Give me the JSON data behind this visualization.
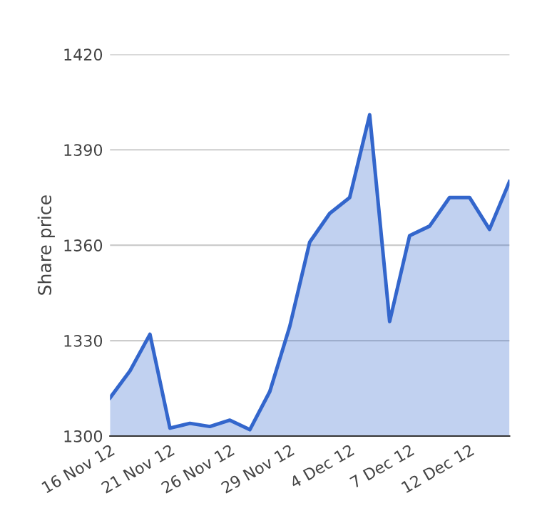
{
  "chart_data": {
    "type": "area",
    "ylabel": "Share price",
    "categories": [
      "16 Nov 12",
      null,
      null,
      "21 Nov 12",
      null,
      null,
      "26 Nov 12",
      null,
      null,
      "29 Nov 12",
      null,
      null,
      "4 Dec 12",
      null,
      null,
      "7 Dec 12",
      null,
      null,
      "12 Dec 12",
      null,
      null
    ],
    "series": [
      {
        "color": "#3366cc",
        "values": [
          1312,
          1320.5,
          1332,
          1302.5,
          1304,
          1303,
          1305,
          1302,
          1314,
          1334.5,
          1361,
          1370,
          1375,
          1401,
          1336,
          1363,
          1366,
          1375,
          1375,
          1365,
          1380
        ]
      }
    ],
    "ylim": [
      1300,
      1420
    ],
    "yticks": [
      1300,
      1330,
      1360,
      1390,
      1420
    ],
    "grid": "y"
  }
}
